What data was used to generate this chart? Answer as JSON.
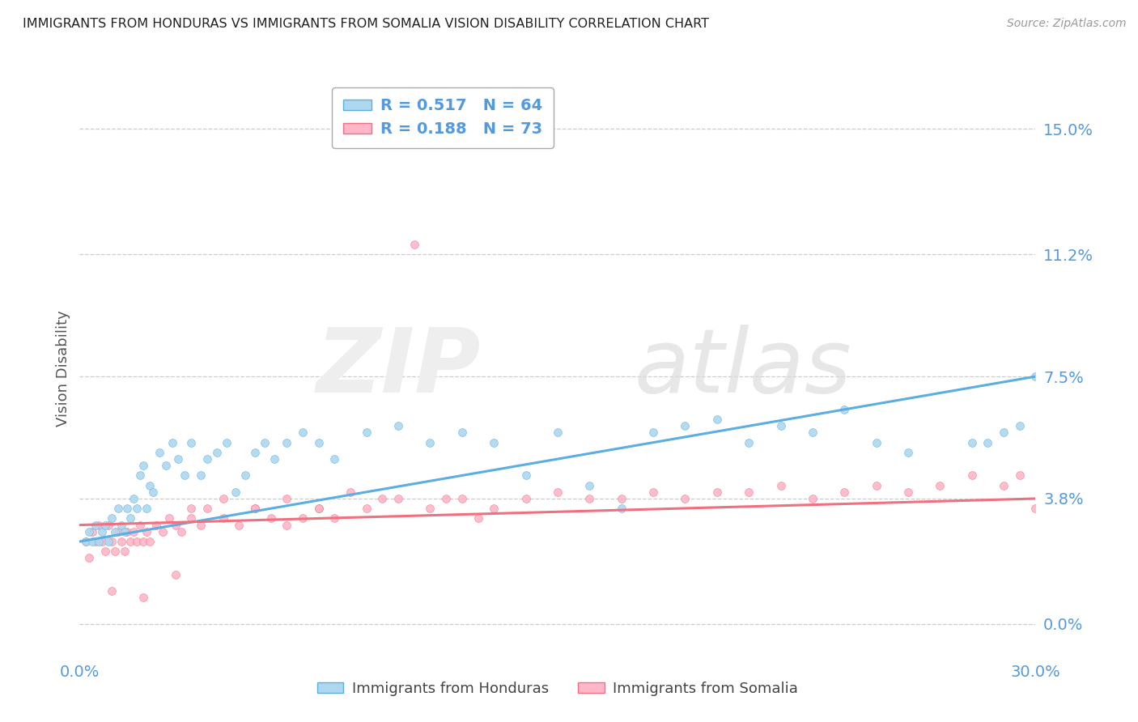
{
  "title": "IMMIGRANTS FROM HONDURAS VS IMMIGRANTS FROM SOMALIA VISION DISABILITY CORRELATION CHART",
  "source": "Source: ZipAtlas.com",
  "ylabel": "Vision Disability",
  "ytick_labels": [
    "0.0%",
    "3.8%",
    "7.5%",
    "11.2%",
    "15.0%"
  ],
  "ytick_values": [
    0.0,
    3.8,
    7.5,
    11.2,
    15.0
  ],
  "xlim": [
    0.0,
    30.0
  ],
  "ylim": [
    -1.0,
    16.5
  ],
  "legend_r1": "R = 0.517",
  "legend_n1": "N = 64",
  "legend_r2": "R = 0.188",
  "legend_n2": "N = 73",
  "color_honduras": "#ADD8F0",
  "color_somalia": "#FFB6C8",
  "color_line_honduras": "#5BAEE0",
  "color_line_somalia": "#F07080",
  "color_text_blue": "#5599DD",
  "honduras_x": [
    0.2,
    0.3,
    0.4,
    0.5,
    0.6,
    0.7,
    0.8,
    0.9,
    1.0,
    1.1,
    1.2,
    1.3,
    1.4,
    1.5,
    1.6,
    1.7,
    1.8,
    1.9,
    2.0,
    2.1,
    2.2,
    2.3,
    2.5,
    2.7,
    2.9,
    3.1,
    3.3,
    3.5,
    3.8,
    4.0,
    4.3,
    4.6,
    4.9,
    5.2,
    5.5,
    5.8,
    6.1,
    6.5,
    7.0,
    7.5,
    8.0,
    9.0,
    10.0,
    11.0,
    12.0,
    13.0,
    14.0,
    15.0,
    16.0,
    17.0,
    18.0,
    19.0,
    20.0,
    21.0,
    22.0,
    23.0,
    24.0,
    25.0,
    26.0,
    28.0,
    29.0,
    29.5,
    30.0,
    28.5
  ],
  "honduras_y": [
    2.5,
    2.8,
    2.5,
    3.0,
    2.5,
    2.8,
    3.0,
    2.5,
    3.2,
    2.8,
    3.5,
    3.0,
    2.8,
    3.5,
    3.2,
    3.8,
    3.5,
    4.5,
    4.8,
    3.5,
    4.2,
    4.0,
    5.2,
    4.8,
    5.5,
    5.0,
    4.5,
    5.5,
    4.5,
    5.0,
    5.2,
    5.5,
    4.0,
    4.5,
    5.2,
    5.5,
    5.0,
    5.5,
    5.8,
    5.5,
    5.0,
    5.8,
    6.0,
    5.5,
    5.8,
    5.5,
    4.5,
    5.8,
    4.2,
    3.5,
    5.8,
    6.0,
    6.2,
    5.5,
    6.0,
    5.8,
    6.5,
    5.5,
    5.2,
    5.5,
    5.8,
    6.0,
    7.5,
    5.5
  ],
  "somalia_x": [
    0.2,
    0.3,
    0.4,
    0.5,
    0.6,
    0.7,
    0.8,
    0.9,
    1.0,
    1.1,
    1.2,
    1.3,
    1.4,
    1.5,
    1.6,
    1.7,
    1.8,
    1.9,
    2.0,
    2.1,
    2.2,
    2.4,
    2.6,
    2.8,
    3.0,
    3.2,
    3.5,
    3.8,
    4.0,
    4.5,
    5.0,
    5.5,
    6.0,
    6.5,
    7.0,
    7.5,
    8.0,
    9.0,
    10.0,
    11.0,
    12.0,
    13.0,
    14.0,
    15.0,
    16.0,
    17.0,
    18.0,
    19.0,
    20.0,
    21.0,
    22.0,
    23.0,
    24.0,
    25.0,
    26.0,
    27.0,
    28.0,
    29.0,
    29.5,
    30.0,
    1.0,
    2.0,
    3.0,
    3.5,
    4.5,
    5.5,
    6.5,
    7.5,
    8.5,
    9.5,
    10.5,
    11.5,
    12.5
  ],
  "somalia_y": [
    2.5,
    2.0,
    2.8,
    2.5,
    3.0,
    2.5,
    2.2,
    3.0,
    2.5,
    2.2,
    2.8,
    2.5,
    2.2,
    2.8,
    2.5,
    2.8,
    2.5,
    3.0,
    2.5,
    2.8,
    2.5,
    3.0,
    2.8,
    3.2,
    3.0,
    2.8,
    3.2,
    3.0,
    3.5,
    3.2,
    3.0,
    3.5,
    3.2,
    3.0,
    3.2,
    3.5,
    3.2,
    3.5,
    3.8,
    3.5,
    3.8,
    3.5,
    3.8,
    4.0,
    3.8,
    3.8,
    4.0,
    3.8,
    4.0,
    4.0,
    4.2,
    3.8,
    4.0,
    4.2,
    4.0,
    4.2,
    4.5,
    4.2,
    4.5,
    3.5,
    1.0,
    0.8,
    1.5,
    3.5,
    3.8,
    3.5,
    3.8,
    3.5,
    4.0,
    3.8,
    11.5,
    3.8,
    3.2
  ],
  "trendline_honduras": [
    2.5,
    7.5
  ],
  "trendline_somalia": [
    3.0,
    3.8
  ]
}
